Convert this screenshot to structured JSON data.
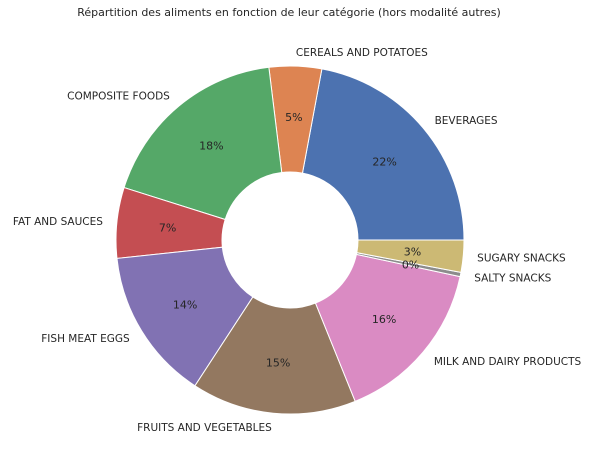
{
  "chart_data": {
    "type": "pie",
    "title": "Répartition des aliments en fonction de leur catégorie (hors modalité autres)",
    "donut": true,
    "categories": [
      "BEVERAGES",
      "CEREALS AND POTATOES",
      "COMPOSITE FOODS",
      "FAT AND SAUCES",
      "FISH MEAT EGGS",
      "FRUITS AND VEGETABLES",
      "MILK AND DAIRY PRODUCTS",
      "SALTY SNACKS",
      "SUGARY SNACKS"
    ],
    "values": [
      22.2,
      4.9,
      18.3,
      6.6,
      14.2,
      15.4,
      15.6,
      0.4,
      3.0
    ],
    "percent_labels": [
      "22%",
      "5%",
      "18%",
      "7%",
      "14%",
      "15%",
      "16%",
      "0%",
      "3%"
    ],
    "colors": [
      "#4c72b0",
      "#dd8452",
      "#55a868",
      "#c44e52",
      "#8172b3",
      "#937860",
      "#da8bc3",
      "#8c8c8c",
      "#ccb974"
    ],
    "start_angle": "0 degrees (3 o'clock), counter-clockwise",
    "legend": "none"
  }
}
